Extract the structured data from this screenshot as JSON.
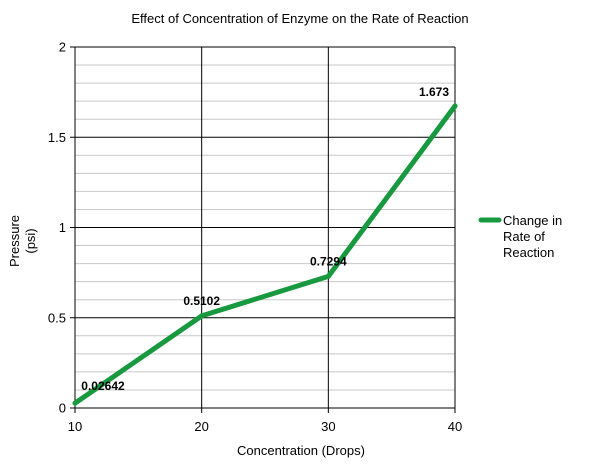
{
  "chart_data": {
    "type": "line",
    "title": "Effect of Concentration of Enzyme on the Rate of Reaction",
    "xlabel": "Concentration (Drops)",
    "ylabel_lines": [
      "Pressure",
      "(psi)"
    ],
    "x": [
      10,
      20,
      30,
      40
    ],
    "xlim": [
      10,
      40
    ],
    "ylim": [
      0,
      2
    ],
    "x_ticks": [
      "10",
      "20",
      "30",
      "40"
    ],
    "y_ticks": [
      "0",
      "0.5",
      "1",
      "1.5",
      "2"
    ],
    "y_major_values": [
      0,
      0.5,
      1,
      1.5,
      2
    ],
    "y_minor_step": 0.1,
    "grid": true,
    "legend_position": "right",
    "series": [
      {
        "name": "Change in Rate of Reaction",
        "legend_lines": [
          "Change in",
          "Rate of",
          "Reaction"
        ],
        "color": "#18993f",
        "values": [
          0.02642,
          0.5102,
          0.7294,
          1.673
        ],
        "labels": [
          "0.02642",
          "0.5102",
          "0.7294",
          "1.673"
        ]
      }
    ]
  }
}
